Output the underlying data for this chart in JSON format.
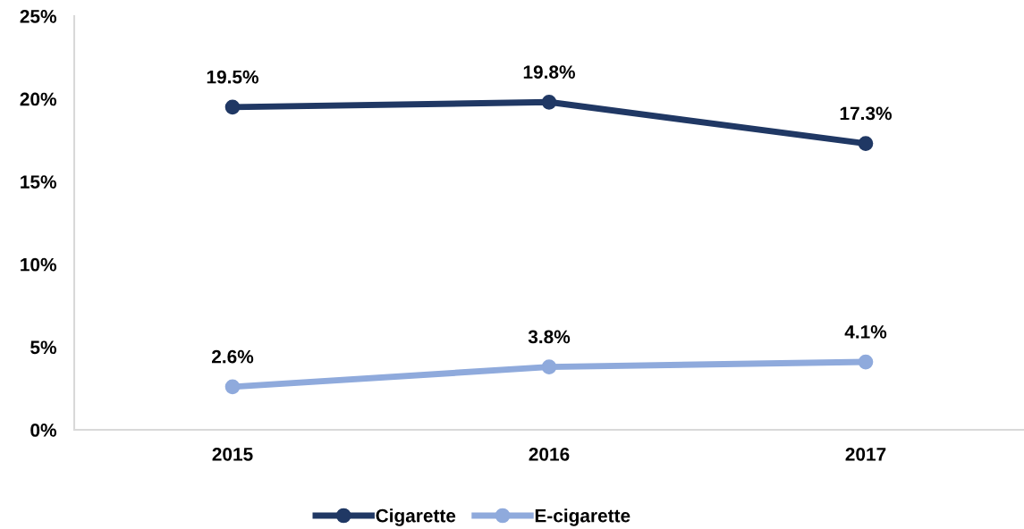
{
  "chart_data": {
    "type": "line",
    "categories": [
      "2015",
      "2016",
      "2017"
    ],
    "series": [
      {
        "name": "Cigarette",
        "color": "#203864",
        "values": [
          19.5,
          19.8,
          17.3
        ],
        "value_labels": [
          "19.5%",
          "19.8%",
          "17.3%"
        ]
      },
      {
        "name": "E-cigarette",
        "color": "#8faadc",
        "values": [
          2.6,
          3.8,
          4.1
        ],
        "value_labels": [
          "2.6%",
          "3.8%",
          "4.1%"
        ]
      }
    ],
    "ylim": [
      0,
      25
    ],
    "yticks": [
      {
        "value": 0,
        "label": "0%"
      },
      {
        "value": 5,
        "label": "5%"
      },
      {
        "value": 10,
        "label": "10%"
      },
      {
        "value": 15,
        "label": "15%"
      },
      {
        "value": 20,
        "label": "20%"
      },
      {
        "value": 25,
        "label": "25%"
      }
    ],
    "grid": false,
    "legend": "bottom",
    "marker": "circle",
    "line_style": "solid"
  }
}
